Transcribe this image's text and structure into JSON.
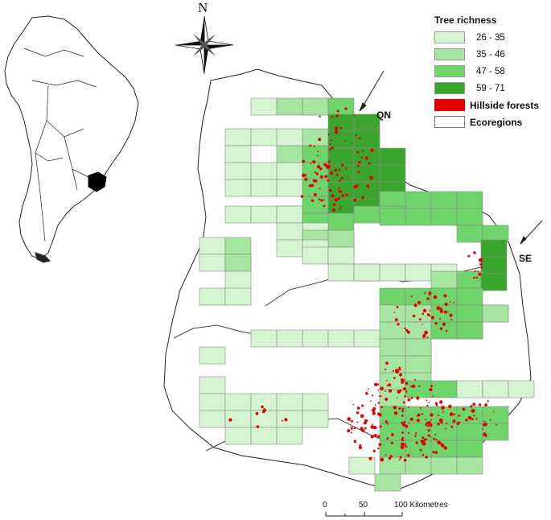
{
  "legend": {
    "title": "Tree richness",
    "classes": [
      {
        "label": "26 - 35",
        "color": "#d4f5d0"
      },
      {
        "label": "35 - 46",
        "color": "#a6e6a0"
      },
      {
        "label": "47 - 58",
        "color": "#6fd46a"
      },
      {
        "label": "59 - 71",
        "color": "#3aa52d"
      }
    ],
    "hillside": {
      "label": "Hillside forests",
      "color": "#e60000"
    },
    "ecoregions": {
      "label": "Ecoregions",
      "color": "#ffffff"
    }
  },
  "north_label": "N",
  "regions": {
    "qn": "QN",
    "se": "SE"
  },
  "scale": {
    "ticks": [
      "0",
      "50",
      "100 Kilometres"
    ]
  }
}
